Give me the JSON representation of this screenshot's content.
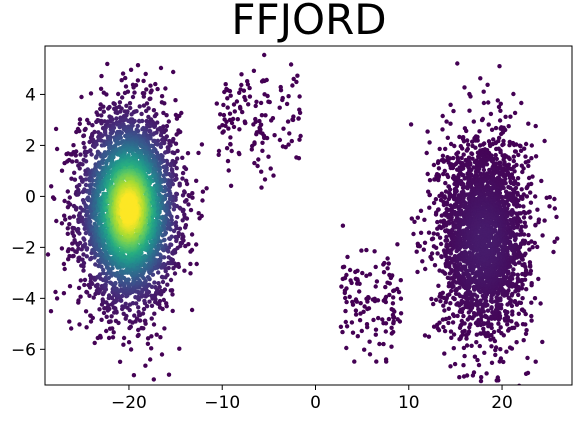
{
  "chart_data": {
    "type": "scatter",
    "title": "FFJORD",
    "xlabel": "",
    "ylabel": "",
    "xlim": [
      -29,
      27.5
    ],
    "ylim": [
      -7.4,
      5.9
    ],
    "xticks": [
      -20,
      -10,
      0,
      10,
      20
    ],
    "xtick_labels": [
      "−20",
      "−10",
      "0",
      "10",
      "20"
    ],
    "yticks": [
      4,
      2,
      0,
      -2,
      -4,
      -6
    ],
    "ytick_labels": [
      "4",
      "2",
      "0",
      "−2",
      "−4",
      "−6"
    ],
    "grid": false,
    "legend": "none",
    "colormap": "viridis",
    "color_encoding": "point density",
    "clusters": [
      {
        "center": [
          -20,
          -0.5
        ],
        "spread": [
          2.6,
          1.9
        ],
        "approx_points": 3800
      },
      {
        "center": [
          18,
          -1.5
        ],
        "spread": [
          2.4,
          2.0
        ],
        "approx_points": 2600
      },
      {
        "center": [
          -6,
          3.0
        ],
        "spread": [
          4.0,
          1.0
        ],
        "approx_points": 140
      },
      {
        "center": [
          6,
          -4.2
        ],
        "spread": [
          3.0,
          1.1
        ],
        "approx_points": 130
      }
    ],
    "colors": {
      "low_density": "#440154",
      "mid_density": "#21918c",
      "high_density": "#fde725"
    }
  }
}
